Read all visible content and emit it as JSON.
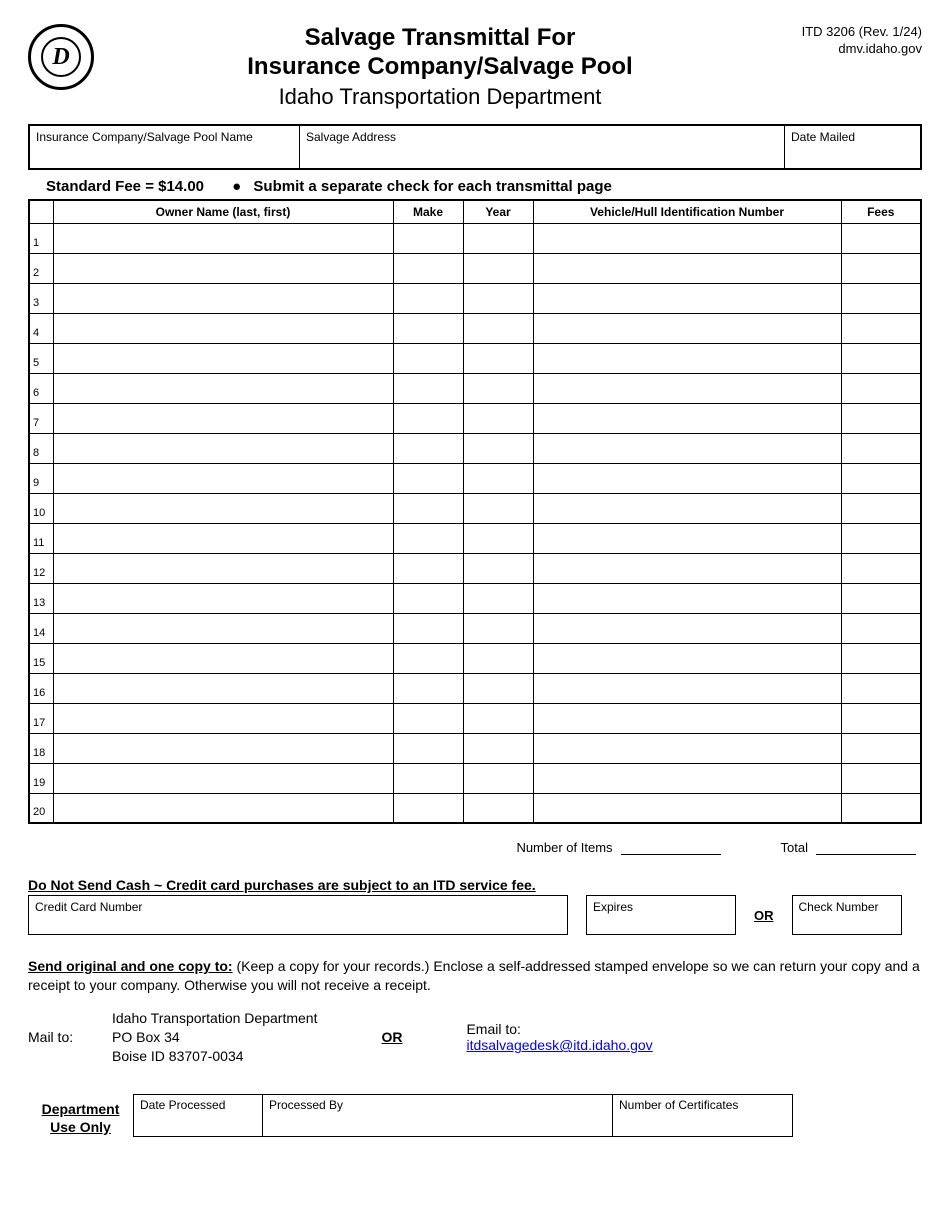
{
  "header": {
    "title_line1": "Salvage Transmittal For",
    "title_line2": "Insurance Company/Salvage Pool",
    "department": "Idaho Transportation Department",
    "form_id": "ITD 3206 (Rev. 1/24)",
    "website": "dmv.idaho.gov",
    "logo_letter": "D"
  },
  "topbox": {
    "company_label": "Insurance Company/Salvage Pool Name",
    "address_label": "Salvage Address",
    "date_label": "Date Mailed"
  },
  "fee_line": {
    "standard_fee": "Standard Fee = $14.00",
    "bullet": "●",
    "submit_note": "Submit a separate check for each transmittal page"
  },
  "grid": {
    "columns": {
      "owner": "Owner Name (last, first)",
      "make": "Make",
      "year": "Year",
      "vin": "Vehicle/Hull Identification Number",
      "fees": "Fees"
    },
    "row_count": 20
  },
  "totals": {
    "num_items_label": "Number of Items",
    "total_label": "Total"
  },
  "warn_line": "Do Not Send Cash ~ Credit card purchases are subject to an ITD service fee.",
  "payment": {
    "cc_label": "Credit Card Number",
    "expires_label": "Expires",
    "or_label": "OR",
    "check_label": "Check Number"
  },
  "send": {
    "lead": "Send original and one copy to:",
    "body": "  (Keep a copy for your records.)  Enclose a self-addressed stamped envelope so we can return your copy and a receipt to your company. Otherwise you will not receive a receipt."
  },
  "mail": {
    "mail_to_label": "Mail to:",
    "addr_line1": "Idaho Transportation Department",
    "addr_line2": "PO Box 34",
    "addr_line3": "Boise ID  83707-0034",
    "or_label": "OR",
    "email_to_label": "Email to:",
    "email": "itdsalvagedesk@itd.idaho.gov"
  },
  "dept": {
    "label_line1": "Department",
    "label_line2": "Use Only",
    "date_processed": "Date Processed",
    "processed_by": "Processed By",
    "num_certs": "Number of Certificates"
  },
  "style": {
    "border_color": "#000000",
    "link_color": "#0000ee",
    "background": "#ffffff",
    "text_color": "#000000"
  }
}
